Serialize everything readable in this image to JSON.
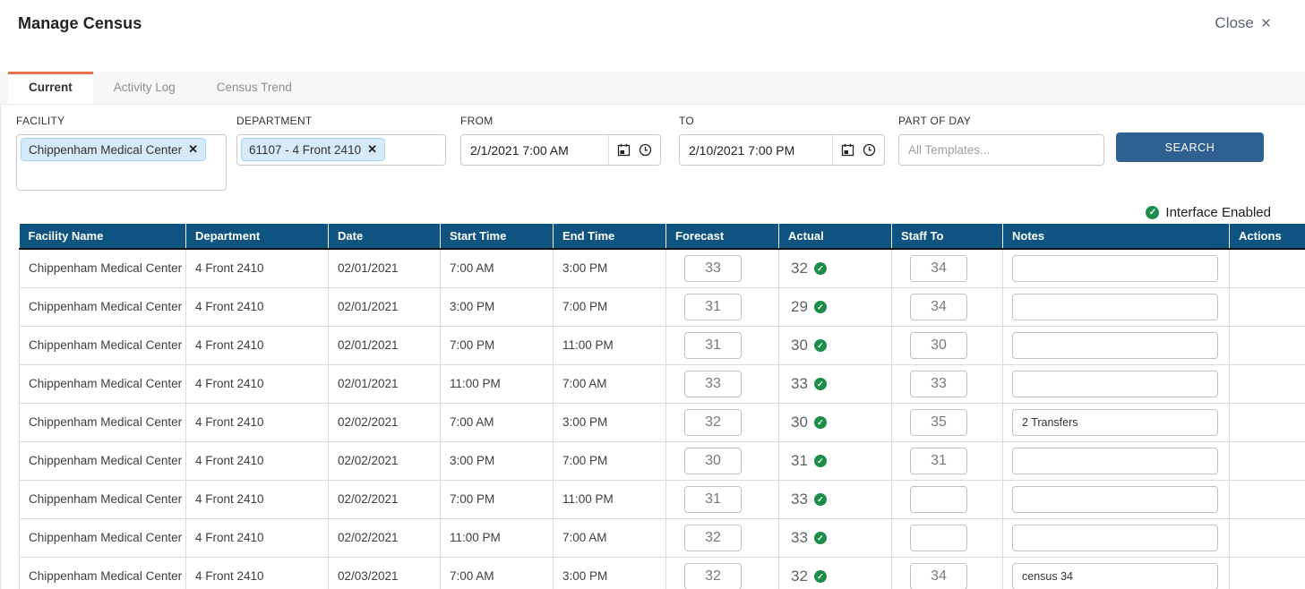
{
  "header": {
    "title": "Manage Census",
    "close_label": "Close"
  },
  "icons": {
    "close": "×",
    "remove": "✕",
    "check": "✓"
  },
  "tabs": [
    {
      "label": "Current",
      "active": true
    },
    {
      "label": "Activity Log",
      "active": false
    },
    {
      "label": "Census Trend",
      "active": false
    }
  ],
  "filters": {
    "facility": {
      "label": "FACILITY",
      "chip": "Chippenham Medical Center"
    },
    "department": {
      "label": "DEPARTMENT",
      "chip": "61107 - 4 Front 2410"
    },
    "from": {
      "label": "FROM",
      "value": "2/1/2021 7:00 AM"
    },
    "to": {
      "label": "TO",
      "value": "2/10/2021 7:00 PM"
    },
    "part_of_day": {
      "label": "PART OF DAY",
      "placeholder": "All Templates..."
    },
    "search_label": "SEARCH"
  },
  "interface_status": {
    "label": "Interface Enabled",
    "enabled": true
  },
  "colors": {
    "accent_orange": "#e8734a",
    "table_header_blue": "#0f5381",
    "button_blue": "#2e618f",
    "status_green": "#1b8e4a",
    "chip_blue": "#d5eafa"
  },
  "table": {
    "columns": [
      "Facility Name",
      "Department",
      "Date",
      "Start Time",
      "End Time",
      "Forecast",
      "Actual",
      "Staff To",
      "Notes",
      "Actions"
    ],
    "rows": [
      {
        "facility": "Chippenham Medical Center",
        "department": "4 Front 2410",
        "date": "02/01/2021",
        "start_time": "7:00 AM",
        "end_time": "3:00 PM",
        "forecast": "33",
        "actual": "32",
        "actual_verified": true,
        "staff_to": "34",
        "notes": ""
      },
      {
        "facility": "Chippenham Medical Center",
        "department": "4 Front 2410",
        "date": "02/01/2021",
        "start_time": "3:00 PM",
        "end_time": "7:00 PM",
        "forecast": "31",
        "actual": "29",
        "actual_verified": true,
        "staff_to": "34",
        "notes": ""
      },
      {
        "facility": "Chippenham Medical Center",
        "department": "4 Front 2410",
        "date": "02/01/2021",
        "start_time": "7:00 PM",
        "end_time": "11:00 PM",
        "forecast": "31",
        "actual": "30",
        "actual_verified": true,
        "staff_to": "30",
        "notes": ""
      },
      {
        "facility": "Chippenham Medical Center",
        "department": "4 Front 2410",
        "date": "02/01/2021",
        "start_time": "11:00 PM",
        "end_time": "7:00 AM",
        "forecast": "33",
        "actual": "33",
        "actual_verified": true,
        "staff_to": "33",
        "notes": ""
      },
      {
        "facility": "Chippenham Medical Center",
        "department": "4 Front 2410",
        "date": "02/02/2021",
        "start_time": "7:00 AM",
        "end_time": "3:00 PM",
        "forecast": "32",
        "actual": "30",
        "actual_verified": true,
        "staff_to": "35",
        "notes": "2 Transfers"
      },
      {
        "facility": "Chippenham Medical Center",
        "department": "4 Front 2410",
        "date": "02/02/2021",
        "start_time": "3:00 PM",
        "end_time": "7:00 PM",
        "forecast": "30",
        "actual": "31",
        "actual_verified": true,
        "staff_to": "31",
        "notes": ""
      },
      {
        "facility": "Chippenham Medical Center",
        "department": "4 Front 2410",
        "date": "02/02/2021",
        "start_time": "7:00 PM",
        "end_time": "11:00 PM",
        "forecast": "31",
        "actual": "33",
        "actual_verified": true,
        "staff_to": "",
        "notes": ""
      },
      {
        "facility": "Chippenham Medical Center",
        "department": "4 Front 2410",
        "date": "02/02/2021",
        "start_time": "11:00 PM",
        "end_time": "7:00 AM",
        "forecast": "32",
        "actual": "33",
        "actual_verified": true,
        "staff_to": "",
        "notes": ""
      },
      {
        "facility": "Chippenham Medical Center",
        "department": "4 Front 2410",
        "date": "02/03/2021",
        "start_time": "7:00 AM",
        "end_time": "3:00 PM",
        "forecast": "32",
        "actual": "32",
        "actual_verified": true,
        "staff_to": "34",
        "notes": "census 34"
      }
    ]
  }
}
